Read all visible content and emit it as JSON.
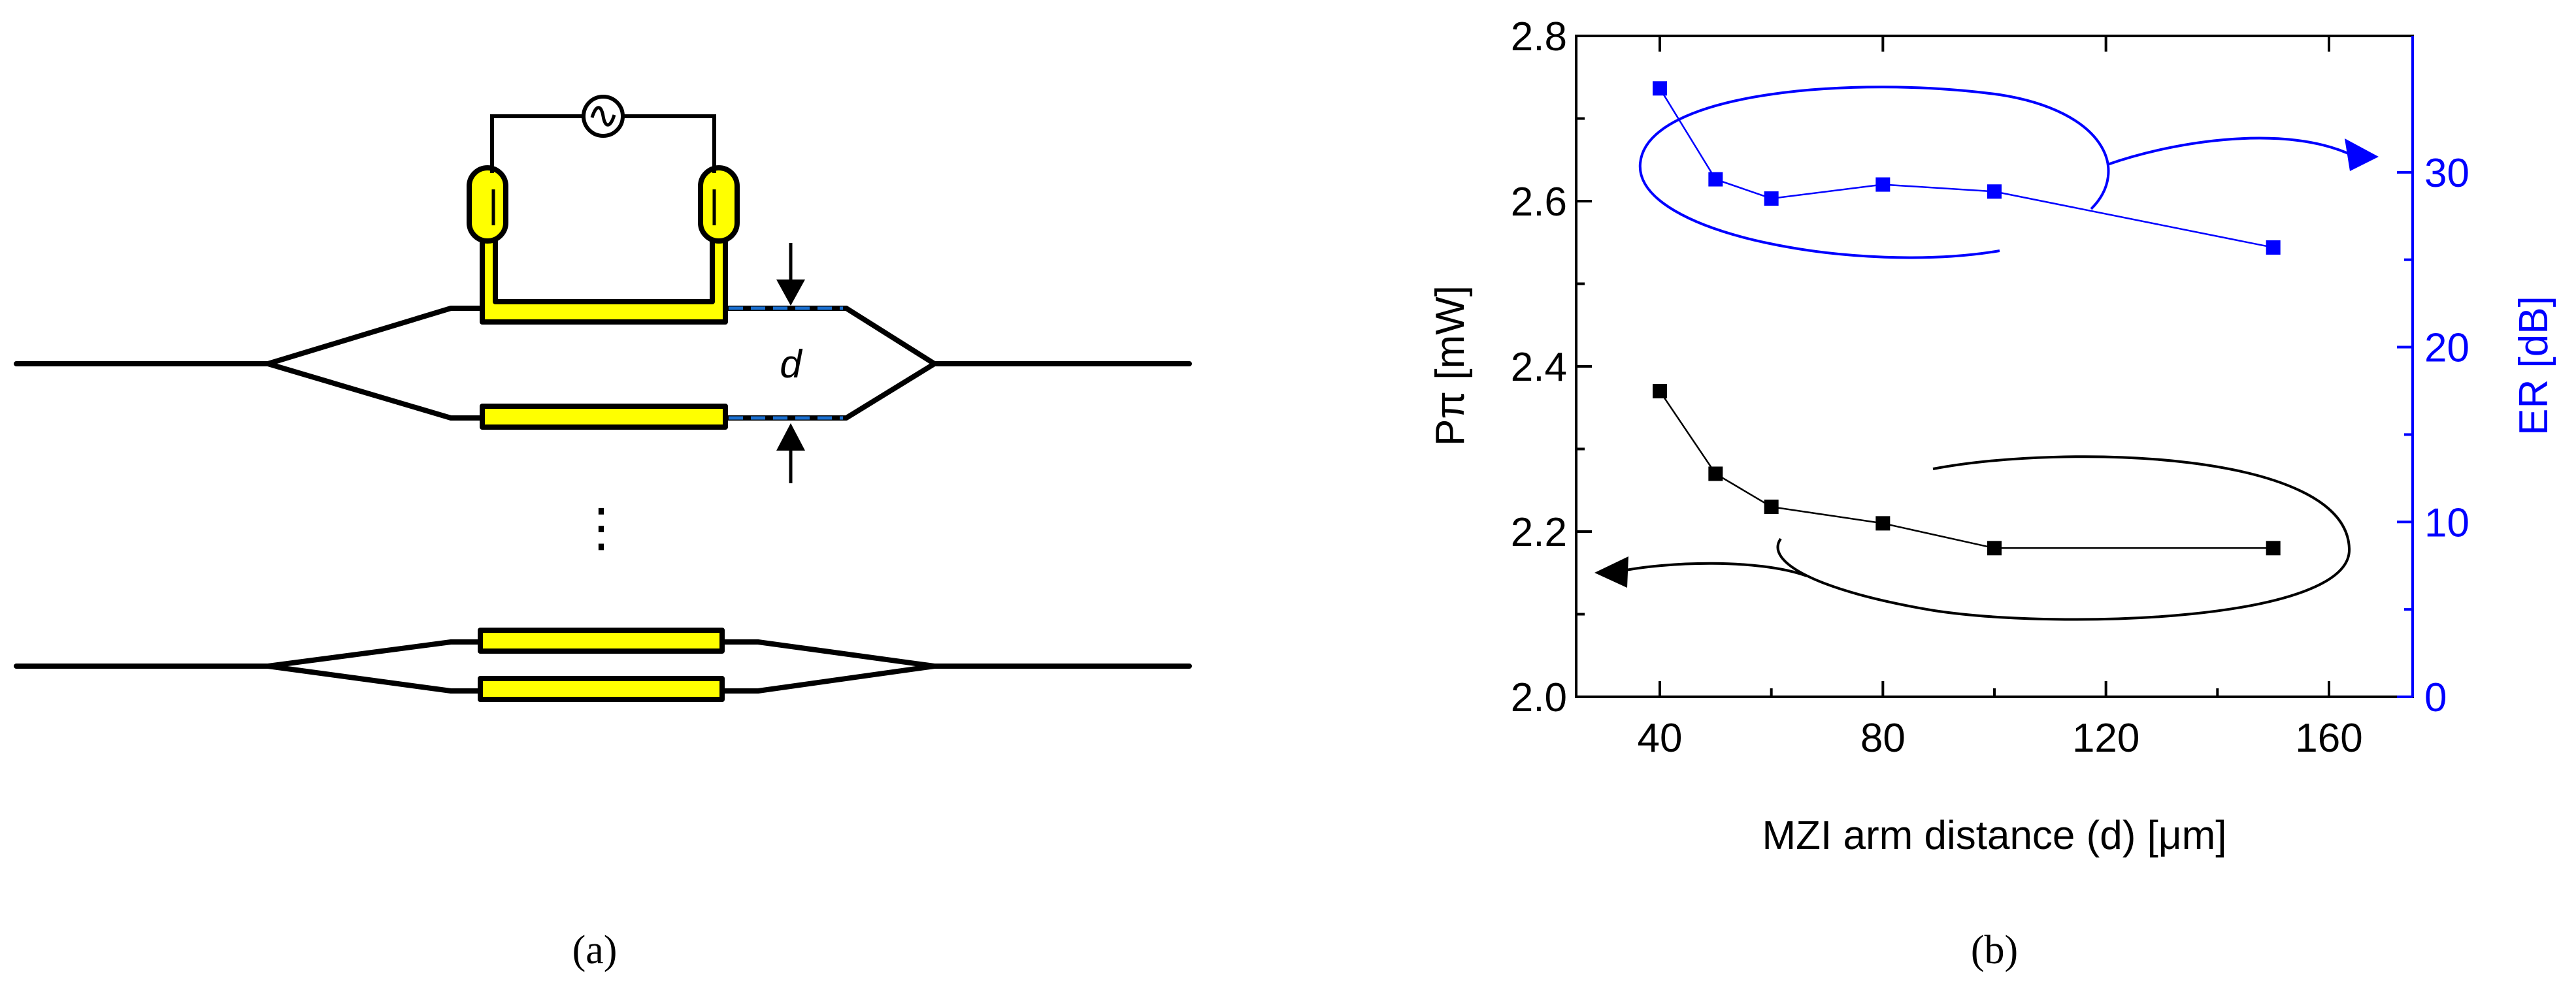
{
  "panel_a": {
    "caption": "(a)",
    "gap_label": "d",
    "ellipsis": "⋮",
    "source_symbol": "∿",
    "electrode_color": "#ffff00",
    "guide_color": "#1a6fd0"
  },
  "panel_b": {
    "caption": "(b)"
  },
  "chart_data": {
    "type": "scatter",
    "x": [
      40,
      50,
      60,
      80,
      100,
      150
    ],
    "xlabel": "MZI arm distance (d) [μm]",
    "xlim": [
      25,
      175
    ],
    "xticks": [
      "40",
      "80",
      "120",
      "160"
    ],
    "xtick_values": [
      40,
      80,
      120,
      160
    ],
    "grid": false,
    "series": [
      {
        "axis": "left",
        "ylabel": "Pπ [mW]",
        "values": [
          2.37,
          2.27,
          2.23,
          2.21,
          2.18,
          2.18
        ],
        "ylim": [
          2.0,
          2.8
        ],
        "yticks": [
          "2.0",
          "2.2",
          "2.4",
          "2.6",
          "2.8"
        ],
        "ytick_values": [
          2.0,
          2.2,
          2.4,
          2.6,
          2.8
        ],
        "color": "#000000",
        "marker": "square"
      },
      {
        "axis": "right",
        "ylabel": "ER [dB]",
        "values": [
          34.8,
          29.6,
          28.5,
          29.3,
          28.9,
          25.7
        ],
        "ylim": [
          0,
          37.8
        ],
        "yticks": [
          "0",
          "10",
          "20",
          "30"
        ],
        "ytick_values": [
          0,
          10,
          20,
          30
        ],
        "color": "#0000ff",
        "marker": "square"
      }
    ]
  }
}
